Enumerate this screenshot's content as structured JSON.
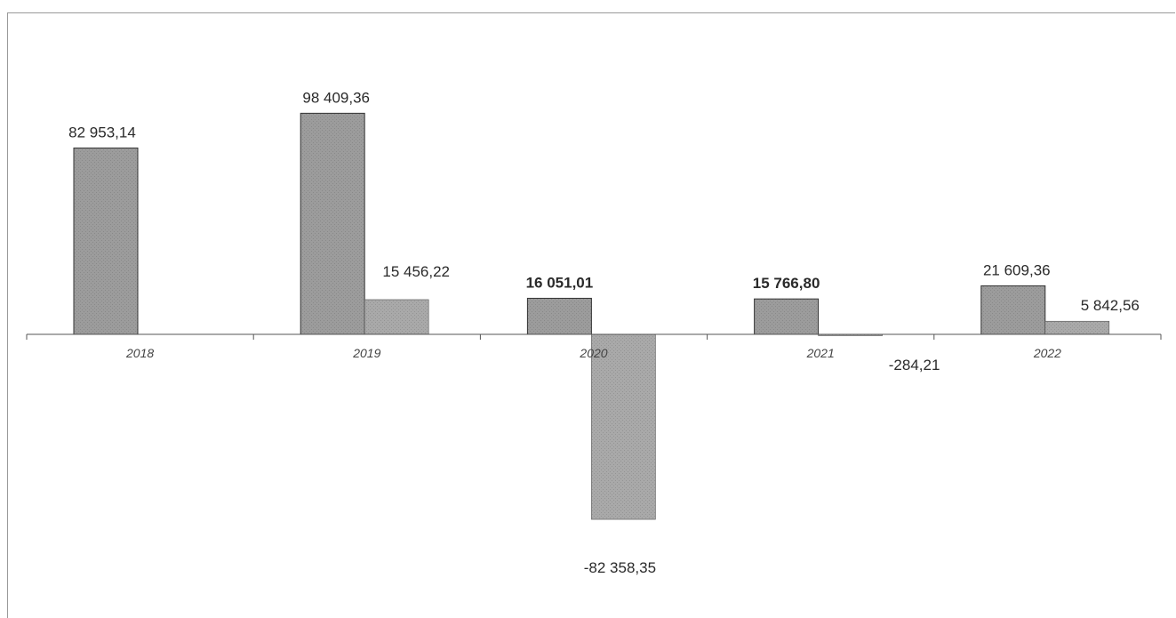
{
  "chart_data": {
    "type": "bar",
    "categories": [
      "2018",
      "2019",
      "2020",
      "2021",
      "2022"
    ],
    "series": [
      {
        "values": [
          82953.14,
          98409.36,
          16051.01,
          15766.8,
          21609.36
        ],
        "labels": [
          "82 953,14",
          "98 409,36",
          "16 051,01",
          "15 766,80",
          "21 609,36"
        ],
        "color": "#9c9c9c"
      },
      {
        "values": [
          null,
          15456.22,
          -82358.35,
          -284.21,
          5842.56
        ],
        "labels": [
          "",
          "15 456,22",
          "-82 358,35",
          "-284,21",
          "5 842,56"
        ],
        "color": "#a9a9a9"
      }
    ],
    "title": "",
    "xlabel": "",
    "ylabel": "",
    "ylim": [
      -90000,
      100000
    ],
    "grid": false,
    "legend": "none"
  }
}
